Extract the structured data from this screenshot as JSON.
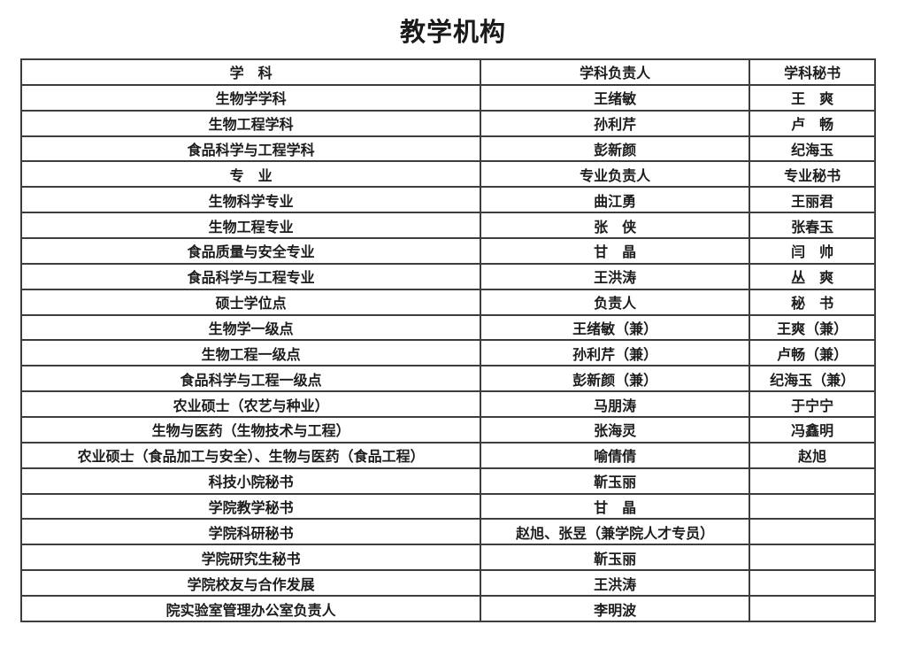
{
  "title": "教学机构",
  "colors": {
    "background": "#ffffff",
    "border": "#3d3d3d",
    "text": "#1c1c1c"
  },
  "table": {
    "rows": [
      [
        "学　科",
        "学科负责人",
        "学科秘书"
      ],
      [
        "生物学学科",
        "王绪敏",
        "王　爽"
      ],
      [
        "生物工程学科",
        "孙利芹",
        "卢　畅"
      ],
      [
        "食品科学与工程学科",
        "彭新颜",
        "纪海玉"
      ],
      [
        "专　业",
        "专业负责人",
        "专业秘书"
      ],
      [
        "生物科学专业",
        "曲江勇",
        "王丽君"
      ],
      [
        "生物工程专业",
        "张　侠",
        "张春玉"
      ],
      [
        "食品质量与安全专业",
        "甘　晶",
        "闫　帅"
      ],
      [
        "食品科学与工程专业",
        "王洪涛",
        "丛　爽"
      ],
      [
        "硕士学位点",
        "负责人",
        "秘　书"
      ],
      [
        "生物学一级点",
        "王绪敏（兼）",
        "王爽（兼）"
      ],
      [
        "生物工程一级点",
        "孙利芹（兼）",
        "卢畅（兼）"
      ],
      [
        "食品科学与工程一级点",
        "彭新颜（兼）",
        "纪海玉（兼）"
      ],
      [
        "农业硕士（农艺与种业）",
        "马朋涛",
        "于宁宁"
      ],
      [
        "生物与医药（生物技术与工程）",
        "张海灵",
        "冯鑫明"
      ],
      [
        "农业硕士（食品加工与安全）、生物与医药（食品工程）",
        "喻倩倩",
        "赵旭"
      ],
      [
        "科技小院秘书",
        "靳玉丽",
        ""
      ],
      [
        "学院教学秘书",
        "甘　晶",
        ""
      ],
      [
        "学院科研秘书",
        "赵旭、张昱（兼学院人才专员）",
        ""
      ],
      [
        "学院研究生秘书",
        "靳玉丽",
        ""
      ],
      [
        "学院校友与合作发展",
        "王洪涛",
        ""
      ],
      [
        "院实验室管理办公室负责人",
        "李明波",
        ""
      ]
    ]
  }
}
